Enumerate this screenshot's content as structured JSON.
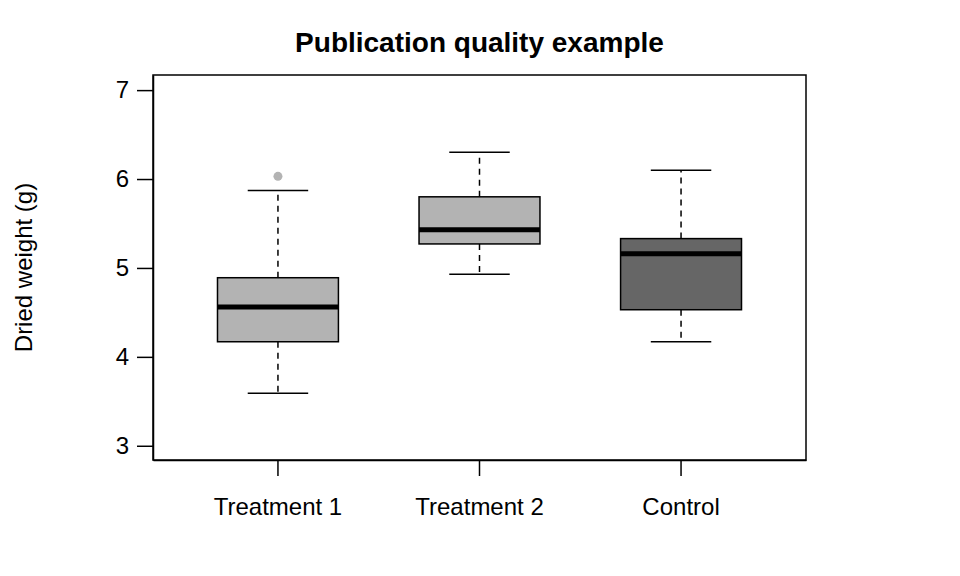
{
  "chart_data": {
    "type": "box",
    "title": "Publication quality example",
    "y_label": "Dried weight (g)",
    "categories": [
      "Treatment 1",
      "Treatment 2",
      "Control"
    ],
    "boxes": [
      {
        "min": 3.59,
        "q1": 4.17,
        "median": 4.56,
        "q3": 4.89,
        "max": 5.87,
        "outliers": [
          6.03
        ]
      },
      {
        "min": 4.93,
        "q1": 5.27,
        "median": 5.43,
        "q3": 5.8,
        "max": 6.3,
        "outliers": []
      },
      {
        "min": 4.17,
        "q1": 4.53,
        "median": 5.16,
        "q3": 5.33,
        "max": 6.1,
        "outliers": []
      }
    ],
    "colors": [
      "#b3b3b3",
      "#b3b3b3",
      "#666666"
    ],
    "ylim": [
      2.84,
      7.17
    ],
    "yticks": [
      3,
      4,
      5,
      6,
      7
    ],
    "grid": false
  }
}
